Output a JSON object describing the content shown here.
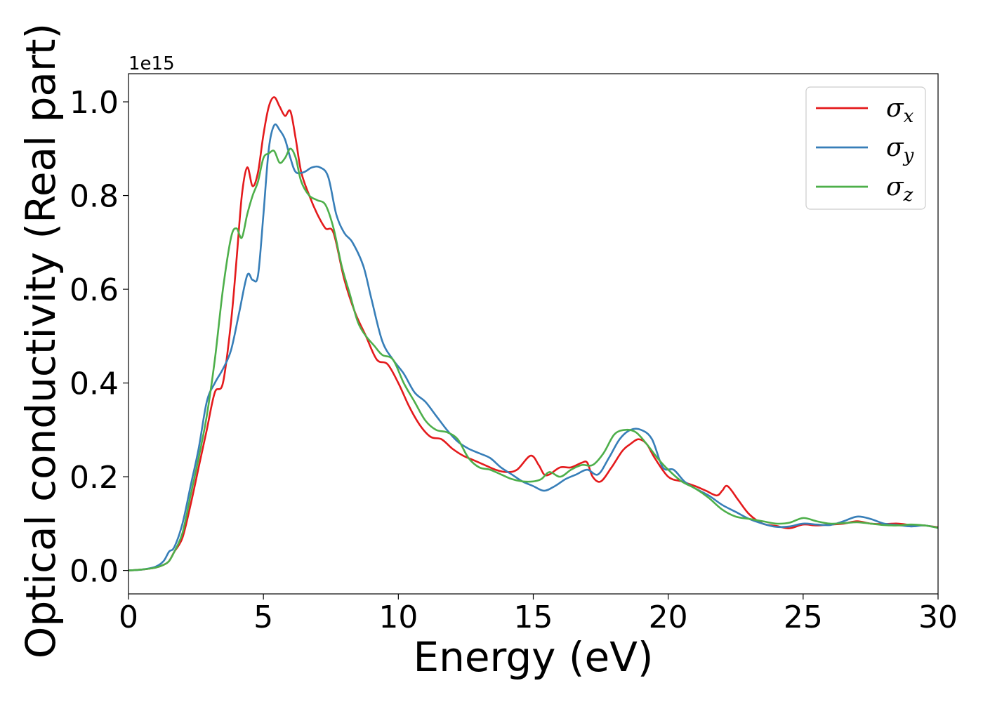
{
  "chart_data": {
    "type": "line",
    "xlabel": "Energy (eV)",
    "ylabel": "Optical conductivity (Real part)",
    "y_offset_label": "1e15",
    "xlim": [
      0,
      30
    ],
    "ylim": [
      -0.05,
      1.06
    ],
    "x_ticks": [
      0,
      5,
      10,
      15,
      20,
      25,
      30
    ],
    "x_tick_labels": [
      "0",
      "5",
      "10",
      "15",
      "20",
      "25",
      "30"
    ],
    "y_ticks": [
      0.0,
      0.2,
      0.4,
      0.6,
      0.8,
      1.0
    ],
    "y_tick_labels": [
      "0.0",
      "0.2",
      "0.4",
      "0.6",
      "0.8",
      "1.0"
    ],
    "legend_position": "top-right",
    "grid": false,
    "series": [
      {
        "name": "σx",
        "legend_base": "σ",
        "legend_sub": "x",
        "color": "#e41a1c",
        "x": [
          0,
          0.5,
          1.0,
          1.3,
          1.5,
          1.7,
          2.0,
          2.3,
          2.6,
          2.9,
          3.2,
          3.5,
          3.8,
          4.0,
          4.2,
          4.4,
          4.6,
          4.8,
          5.0,
          5.2,
          5.4,
          5.6,
          5.8,
          6.0,
          6.2,
          6.4,
          6.7,
          7.0,
          7.3,
          7.6,
          8.0,
          8.4,
          8.8,
          9.2,
          9.6,
          10.0,
          10.4,
          10.8,
          11.2,
          11.6,
          12.0,
          12.4,
          12.8,
          13.2,
          13.6,
          14.0,
          14.4,
          14.9,
          15.2,
          15.4,
          15.6,
          16.0,
          16.4,
          16.8,
          17.0,
          17.2,
          17.5,
          17.9,
          18.3,
          18.6,
          18.9,
          19.2,
          19.5,
          20.0,
          20.5,
          21.0,
          21.4,
          21.8,
          22.0,
          22.2,
          22.6,
          23.0,
          23.5,
          24.0,
          24.5,
          25.0,
          25.5,
          26.0,
          26.5,
          27.0,
          27.5,
          28.0,
          28.5,
          29.0,
          29.5,
          30.0
        ],
        "y": [
          0.0,
          0.002,
          0.006,
          0.012,
          0.02,
          0.04,
          0.07,
          0.14,
          0.22,
          0.3,
          0.38,
          0.4,
          0.53,
          0.66,
          0.8,
          0.86,
          0.82,
          0.85,
          0.93,
          0.99,
          1.01,
          0.99,
          0.97,
          0.98,
          0.92,
          0.85,
          0.8,
          0.76,
          0.73,
          0.72,
          0.62,
          0.55,
          0.5,
          0.45,
          0.44,
          0.4,
          0.35,
          0.31,
          0.285,
          0.28,
          0.26,
          0.245,
          0.235,
          0.225,
          0.215,
          0.21,
          0.215,
          0.245,
          0.225,
          0.205,
          0.205,
          0.22,
          0.22,
          0.23,
          0.23,
          0.2,
          0.19,
          0.22,
          0.255,
          0.27,
          0.28,
          0.27,
          0.24,
          0.2,
          0.19,
          0.18,
          0.17,
          0.16,
          0.17,
          0.18,
          0.15,
          0.12,
          0.1,
          0.095,
          0.09,
          0.098,
          0.096,
          0.098,
          0.1,
          0.105,
          0.1,
          0.099,
          0.1,
          0.097,
          0.096,
          0.092
        ]
      },
      {
        "name": "σy",
        "legend_base": "σ",
        "legend_sub": "y",
        "color": "#377eb8",
        "x": [
          0,
          0.5,
          1.0,
          1.3,
          1.5,
          1.7,
          2.0,
          2.3,
          2.6,
          2.9,
          3.2,
          3.5,
          3.8,
          4.1,
          4.4,
          4.6,
          4.8,
          5.0,
          5.2,
          5.4,
          5.6,
          5.8,
          6.0,
          6.2,
          6.5,
          6.8,
          7.1,
          7.4,
          7.7,
          8.0,
          8.3,
          8.7,
          9.0,
          9.4,
          9.8,
          10.2,
          10.6,
          11.0,
          11.4,
          11.8,
          12.2,
          12.6,
          13.0,
          13.4,
          13.8,
          14.2,
          14.6,
          15.0,
          15.4,
          15.8,
          16.2,
          16.6,
          17.0,
          17.4,
          17.8,
          18.2,
          18.6,
          19.0,
          19.4,
          19.8,
          20.2,
          20.6,
          21.0,
          21.5,
          22.0,
          22.5,
          23.0,
          23.5,
          24.0,
          24.5,
          25.0,
          25.5,
          26.0,
          26.5,
          27.0,
          27.5,
          28.0,
          28.5,
          29.0,
          29.5,
          30.0
        ],
        "y": [
          0.0,
          0.002,
          0.008,
          0.02,
          0.04,
          0.05,
          0.1,
          0.18,
          0.26,
          0.36,
          0.4,
          0.43,
          0.47,
          0.55,
          0.63,
          0.62,
          0.63,
          0.76,
          0.9,
          0.95,
          0.94,
          0.92,
          0.88,
          0.85,
          0.85,
          0.86,
          0.86,
          0.84,
          0.76,
          0.72,
          0.7,
          0.65,
          0.58,
          0.49,
          0.45,
          0.42,
          0.38,
          0.36,
          0.33,
          0.3,
          0.275,
          0.26,
          0.25,
          0.24,
          0.22,
          0.205,
          0.19,
          0.18,
          0.17,
          0.18,
          0.195,
          0.205,
          0.215,
          0.205,
          0.24,
          0.28,
          0.3,
          0.3,
          0.28,
          0.22,
          0.215,
          0.19,
          0.175,
          0.16,
          0.14,
          0.125,
          0.11,
          0.1,
          0.093,
          0.094,
          0.1,
          0.098,
          0.097,
          0.105,
          0.115,
          0.11,
          0.1,
          0.097,
          0.094,
          0.096,
          0.091
        ]
      },
      {
        "name": "σz",
        "legend_base": "σ",
        "legend_sub": "z",
        "color": "#4daf4a",
        "x": [
          0,
          0.5,
          1.0,
          1.3,
          1.5,
          1.7,
          2.0,
          2.3,
          2.6,
          2.9,
          3.2,
          3.5,
          3.8,
          4.0,
          4.2,
          4.4,
          4.6,
          4.8,
          5.0,
          5.2,
          5.4,
          5.6,
          5.8,
          6.0,
          6.2,
          6.4,
          6.7,
          7.0,
          7.3,
          7.6,
          7.9,
          8.2,
          8.5,
          8.8,
          9.1,
          9.4,
          9.8,
          10.2,
          10.6,
          11.0,
          11.4,
          11.8,
          12.2,
          12.6,
          13.0,
          13.4,
          13.8,
          14.2,
          14.6,
          15.0,
          15.3,
          15.6,
          16.0,
          16.4,
          16.8,
          17.2,
          17.6,
          18.0,
          18.4,
          18.8,
          19.2,
          19.6,
          20.0,
          20.5,
          21.0,
          21.5,
          22.0,
          22.5,
          23.0,
          23.5,
          24.0,
          24.5,
          25.0,
          25.5,
          26.0,
          26.5,
          27.0,
          27.5,
          28.0,
          28.5,
          29.0,
          29.5,
          30.0
        ],
        "y": [
          0.0,
          0.002,
          0.006,
          0.012,
          0.02,
          0.04,
          0.08,
          0.16,
          0.24,
          0.33,
          0.45,
          0.6,
          0.71,
          0.73,
          0.71,
          0.76,
          0.8,
          0.83,
          0.88,
          0.89,
          0.895,
          0.87,
          0.88,
          0.9,
          0.88,
          0.83,
          0.8,
          0.79,
          0.78,
          0.73,
          0.65,
          0.59,
          0.53,
          0.5,
          0.48,
          0.46,
          0.45,
          0.4,
          0.36,
          0.32,
          0.3,
          0.295,
          0.28,
          0.24,
          0.22,
          0.215,
          0.205,
          0.195,
          0.19,
          0.19,
          0.195,
          0.21,
          0.2,
          0.215,
          0.225,
          0.225,
          0.25,
          0.29,
          0.3,
          0.295,
          0.27,
          0.24,
          0.215,
          0.19,
          0.175,
          0.155,
          0.13,
          0.115,
          0.11,
          0.105,
          0.1,
          0.102,
          0.112,
          0.105,
          0.1,
          0.101,
          0.103,
          0.1,
          0.097,
          0.096,
          0.098,
          0.096,
          0.091
        ]
      }
    ]
  }
}
